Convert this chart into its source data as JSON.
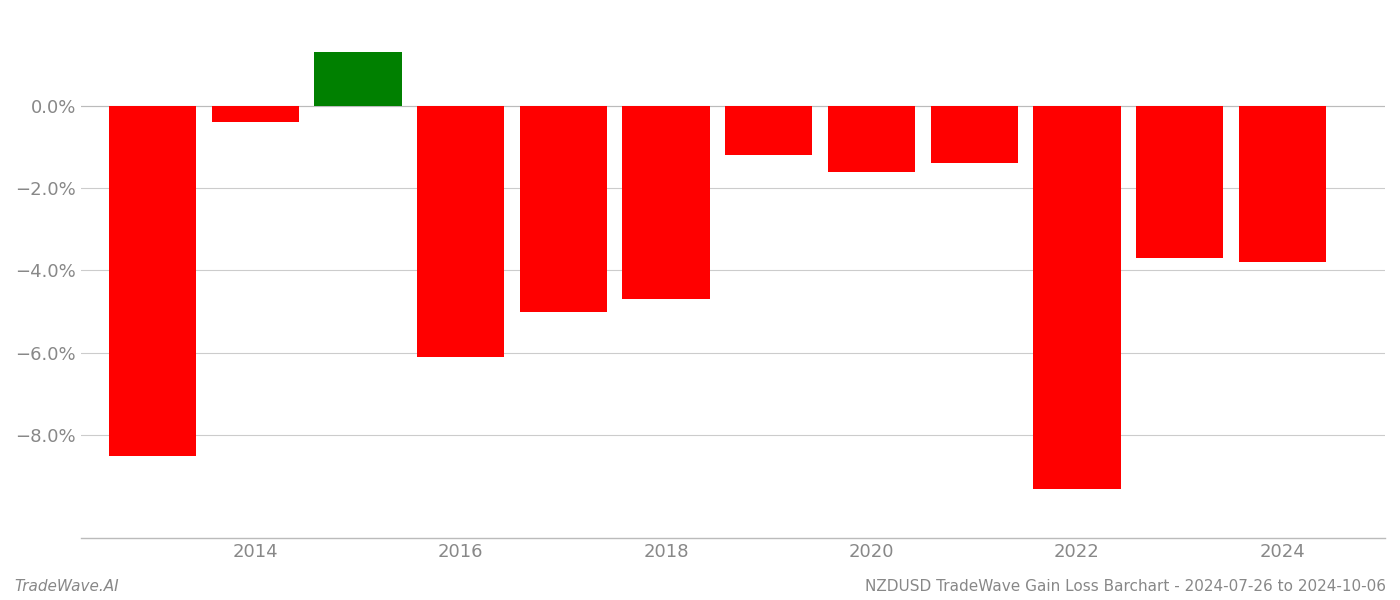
{
  "years": [
    2013,
    2014,
    2015,
    2016,
    2017,
    2018,
    2019,
    2020,
    2021,
    2022,
    2023,
    2024
  ],
  "values": [
    -0.085,
    -0.004,
    0.013,
    -0.061,
    -0.05,
    -0.047,
    -0.012,
    -0.016,
    -0.014,
    -0.093,
    -0.037,
    -0.038
  ],
  "bar_colors": [
    "#ff0000",
    "#ff0000",
    "#008000",
    "#ff0000",
    "#ff0000",
    "#ff0000",
    "#ff0000",
    "#ff0000",
    "#ff0000",
    "#ff0000",
    "#ff0000",
    "#ff0000"
  ],
  "bar_width": 0.85,
  "ylim_min": -0.105,
  "ylim_max": 0.022,
  "background_color": "#ffffff",
  "grid_color": "#cccccc",
  "footer_color": "#888888",
  "tick_label_color": "#888888",
  "footer_left": "TradeWave.AI",
  "footer_right": "NZDUSD TradeWave Gain Loss Barchart - 2024-07-26 to 2024-10-06",
  "footer_fontsize": 11,
  "tick_fontsize": 13,
  "yticks": [
    -0.08,
    -0.06,
    -0.04,
    -0.02,
    0.0
  ],
  "xticks": [
    2014,
    2016,
    2018,
    2020,
    2022,
    2024
  ],
  "xlim_min": 2012.3,
  "xlim_max": 2025.0
}
